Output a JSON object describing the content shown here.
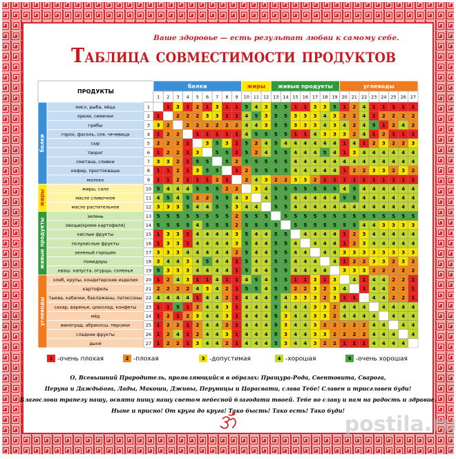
{
  "header": {
    "subtitle": "Ваше здоровье — есть результат любви к самому себе.",
    "title": "Таблица совместимости продуктов"
  },
  "table": {
    "corner": "ПРОДУКТЫ",
    "column_groups": [
      {
        "name": "белки",
        "color": "#3a8fd6",
        "text_color": "#ffffff",
        "columns": [
          1,
          2,
          3,
          4,
          5,
          6,
          7,
          8,
          9
        ]
      },
      {
        "name": "жиры",
        "color": "#ffe800",
        "text_color": "#d6262a",
        "columns": [
          10,
          11,
          12
        ]
      },
      {
        "name": "живые продукты",
        "color": "#2f9a3a",
        "text_color": "#ffffff",
        "columns": [
          13,
          14,
          15,
          16,
          17,
          18,
          19
        ]
      },
      {
        "name": "углеводы",
        "color": "#f07a1c",
        "text_color": "#ffffff",
        "columns": [
          20,
          21,
          22,
          23,
          24,
          25,
          26,
          27
        ]
      }
    ],
    "row_groups": [
      {
        "name": "белки",
        "color": "#3a8fd6",
        "light": "#c5dcf3",
        "text_color": "#ffffff",
        "rows": [
          {
            "number": 1,
            "name": "мясо, рыба, яйца",
            "cells": [
              null,
              1,
              3,
              1,
              2,
              1,
              3,
              1,
              1,
              5,
              4,
              3,
              5,
              5,
              1,
              1,
              3,
              3,
              5,
              1,
              2,
              4,
              1,
              1,
              1,
              1,
              1
            ]
          },
          {
            "number": 2,
            "name": "орехи, семечки",
            "cells": [
              1,
              null,
              2,
              2,
              2,
              3,
              3,
              1,
              1,
              4,
              5,
              3,
              5,
              5,
              3,
              3,
              3,
              4,
              3,
              2,
              2,
              4,
              1,
              2,
              2,
              2,
              2
            ]
          },
          {
            "number": 3,
            "name": "грибы",
            "cells": [
              3,
              2,
              null,
              2,
              2,
              2,
              2,
              2,
              2,
              4,
              4,
              3,
              5,
              5,
              3,
              3,
              3,
              4,
              3,
              4,
              2,
              4,
              5,
              1,
              2,
              4,
              2
            ]
          },
          {
            "number": 4,
            "name": "горох, фасоль, соя, чечевица",
            "cells": [
              1,
              2,
              2,
              null,
              1,
              1,
              1,
              1,
              1,
              4,
              5,
              5,
              5,
              5,
              1,
              1,
              4,
              3,
              3,
              3,
              2,
              4,
              1,
              2,
              1,
              1,
              1
            ]
          },
          {
            "number": 5,
            "name": "сыр",
            "cells": [
              2,
              2,
              2,
              1,
              null,
              3,
              5,
              3,
              1,
              5,
              2,
              4,
              5,
              4,
              4,
              4,
              4,
              4,
              4,
              1,
              4,
              1,
              2,
              3,
              2,
              2,
              3
            ]
          },
          {
            "number": 6,
            "name": "творог",
            "cells": [
              1,
              2,
              2,
              1,
              3,
              null,
              5,
              5,
              1,
              5,
              2,
              4,
              5,
              5,
              4,
              4,
              4,
              5,
              4,
              1,
              3,
              4,
              4,
              4,
              4,
              4,
              4
            ]
          },
          {
            "number": 7,
            "name": "сметана, сливки",
            "cells": [
              3,
              3,
              2,
              1,
              5,
              5,
              null,
              5,
              2,
              5,
              5,
              5,
              5,
              5,
              4,
              4,
              4,
              4,
              4,
              4,
              4,
              4,
              4,
              4,
              4,
              4,
              4
            ]
          },
          {
            "number": 8,
            "name": "кефир, простокваша",
            "cells": [
              1,
              1,
              2,
              1,
              3,
              5,
              5,
              null,
              1,
              2,
              5,
              5,
              5,
              5,
              4,
              4,
              4,
              4,
              4,
              1,
              2,
              2,
              3,
              3,
              2,
              3,
              2
            ]
          },
          {
            "number": 9,
            "name": "молоко",
            "cells": [
              1,
              1,
              2,
              1,
              1,
              1,
              2,
              1,
              null,
              2,
              4,
              3,
              2,
              2,
              3,
              3,
              2,
              1,
              1,
              1,
              1,
              1,
              1,
              1,
              1,
              1,
              1
            ]
          }
        ]
      },
      {
        "name": "жиры",
        "color": "#ffe800",
        "light": "#fff3a8",
        "text_color": "#d6262a",
        "rows": [
          {
            "number": 10,
            "name": "жиры, сало",
            "cells": [
              5,
              4,
              4,
              4,
              5,
              5,
              5,
              2,
              2,
              null,
              3,
              4,
              5,
              5,
              5,
              5,
              5,
              5,
              5,
              4,
              5,
              4,
              4,
              4,
              4,
              4,
              4
            ]
          },
          {
            "number": 11,
            "name": "масло сливочное",
            "cells": [
              4,
              5,
              4,
              5,
              2,
              2,
              5,
              5,
              4,
              3,
              null,
              4,
              5,
              5,
              4,
              4,
              4,
              4,
              4,
              5,
              5,
              4,
              4,
              4,
              4,
              4,
              4
            ]
          },
          {
            "number": 12,
            "name": "масло растительное",
            "cells": [
              3,
              3,
              3,
              5,
              4,
              4,
              5,
              5,
              3,
              4,
              4,
              null,
              5,
              5,
              4,
              4,
              4,
              4,
              4,
              4,
              4,
              4,
              4,
              4,
              4,
              4,
              4
            ]
          }
        ]
      },
      {
        "name": "живые продукты",
        "color": "#2f9a3a",
        "light": "#cfe8b4",
        "text_color": "#ffffff",
        "rows": [
          {
            "number": 13,
            "name": "зелень",
            "cells": [
              5,
              5,
              5,
              5,
              5,
              5,
              5,
              5,
              2,
              5,
              5,
              5,
              null,
              5,
              5,
              5,
              5,
              5,
              5,
              5,
              5,
              5,
              5,
              5,
              5,
              5,
              5
            ]
          },
          {
            "number": 14,
            "name": "овощи(кроме картофеля)",
            "cells": [
              5,
              5,
              5,
              5,
              4,
              5,
              5,
              5,
              2,
              5,
              5,
              5,
              5,
              null,
              5,
              5,
              5,
              5,
              5,
              5,
              5,
              4,
              4,
              3,
              3,
              3,
              3
            ]
          },
          {
            "number": 15,
            "name": "кислые фрукты",
            "cells": [
              1,
              3,
              3,
              1,
              4,
              4,
              4,
              4,
              3,
              5,
              4,
              4,
              5,
              5,
              null,
              4,
              4,
              4,
              4,
              1,
              2,
              3,
              4,
              4,
              4,
              4,
              4
            ]
          },
          {
            "number": 16,
            "name": "полукислые фрукты",
            "cells": [
              1,
              3,
              3,
              1,
              4,
              4,
              4,
              4,
              3,
              5,
              4,
              4,
              5,
              5,
              4,
              null,
              4,
              4,
              4,
              1,
              2,
              3,
              4,
              4,
              4,
              4,
              4
            ]
          },
          {
            "number": 17,
            "name": "зеленый горошек",
            "cells": [
              3,
              3,
              3,
              4,
              4,
              4,
              4,
              4,
              2,
              5,
              4,
              4,
              5,
              5,
              4,
              4,
              null,
              4,
              4,
              3,
              3,
              3,
              3,
              3,
              3,
              3,
              3
            ]
          },
          {
            "number": 18,
            "name": "помидоры",
            "cells": [
              3,
              4,
              4,
              3,
              4,
              5,
              4,
              4,
              1,
              5,
              4,
              4,
              5,
              5,
              4,
              4,
              4,
              null,
              4,
              1,
              2,
              2,
              3,
              3,
              2,
              3,
              2
            ]
          },
          {
            "number": 19,
            "name": "кваш. капуста, огурцы, соленья",
            "cells": [
              5,
              3,
              3,
              3,
              4,
              4,
              4,
              4,
              1,
              5,
              4,
              4,
              5,
              5,
              4,
              4,
              4,
              4,
              null,
              3,
              3,
              3,
              2,
              2,
              2,
              2,
              2
            ]
          }
        ]
      },
      {
        "name": "углеводы",
        "color": "#f07a1c",
        "light": "#fbd3b0",
        "text_color": "#ffffff",
        "rows": [
          {
            "number": 20,
            "name": "хлеб, крупы, кондитерские изделия",
            "cells": [
              1,
              2,
              4,
              3,
              1,
              1,
              4,
              1,
              1,
              4,
              5,
              4,
              5,
              5,
              1,
              1,
              3,
              1,
              3,
              null,
              4,
              1,
              4,
              4,
              2,
              2,
              1
            ]
          },
          {
            "number": 21,
            "name": "картофель",
            "cells": [
              2,
              2,
              2,
              2,
              4,
              3,
              4,
              2,
              1,
              5,
              5,
              4,
              5,
              5,
              2,
              2,
              3,
              2,
              3,
              4,
              null,
              1,
              4,
              4,
              2,
              2,
              1
            ]
          },
          {
            "number": 22,
            "name": "тыква, кабачки, баклажаны, патиссоны",
            "cells": [
              4,
              4,
              4,
              4,
              1,
              4,
              4,
              2,
              1,
              4,
              4,
              4,
              5,
              4,
              3,
              3,
              3,
              2,
              3,
              1,
              1,
              null,
              4,
              4,
              2,
              2,
              1
            ]
          },
          {
            "number": 23,
            "name": "сахар, варенье, шоколад, конфеты",
            "cells": [
              1,
              1,
              5,
              1,
              2,
              4,
              4,
              3,
              1,
              4,
              4,
              4,
              5,
              4,
              4,
              4,
              3,
              3,
              2,
              4,
              4,
              4,
              null,
              4,
              4,
              4,
              4
            ]
          },
          {
            "number": 24,
            "name": "мёд",
            "cells": [
              1,
              2,
              1,
              2,
              3,
              4,
              4,
              3,
              1,
              4,
              4,
              4,
              5,
              3,
              4,
              4,
              3,
              3,
              2,
              4,
              4,
              4,
              4,
              null,
              4,
              4,
              4
            ]
          },
          {
            "number": 25,
            "name": "виноград, абрикосы, персики",
            "cells": [
              1,
              2,
              2,
              1,
              2,
              4,
              4,
              2,
              1,
              4,
              4,
              4,
              5,
              3,
              4,
              4,
              3,
              2,
              2,
              2,
              2,
              2,
              4,
              4,
              null,
              4,
              4
            ]
          },
          {
            "number": 26,
            "name": "сладкие фрукты",
            "cells": [
              1,
              2,
              4,
              1,
              2,
              4,
              4,
              3,
              1,
              4,
              4,
              4,
              5,
              3,
              4,
              4,
              3,
              3,
              2,
              2,
              2,
              2,
              4,
              4,
              4,
              null,
              4
            ]
          },
          {
            "number": 27,
            "name": "дыня",
            "cells": [
              1,
              2,
              2,
              1,
              3,
              4,
              4,
              2,
              1,
              4,
              4,
              4,
              5,
              3,
              4,
              4,
              3,
              2,
              2,
              1,
              1,
              1,
              4,
              4,
              4,
              4,
              null
            ]
          }
        ]
      }
    ]
  },
  "legend": [
    {
      "value": 1,
      "label": "-очень плохая",
      "color": "#e8221e"
    },
    {
      "value": 2,
      "label": "-плохая",
      "color": "#f08a1c"
    },
    {
      "value": 3,
      "label": "-допустимая",
      "color": "#f5e400"
    },
    {
      "value": 4,
      "label": "-хорошая",
      "color": "#c3d82f"
    },
    {
      "value": 5,
      "label": "-очень хорошая",
      "color": "#4da646"
    }
  ],
  "prayer": [
    "О, Всевышний Прародитель, проявляющийся в образах: Пращура-Рода, Свентовита, Сварога,",
    "Перуна и Даждьбога, Лады, Макоши, Дживы, Перуницы и Царасвати, слава Тебе! Славен и трисглавен буди!",
    "Благослови трапезу нашу, освяти пищу нашу светом небесной благодати твоей. Тебе во славу и нам на радость и здравие.",
    "Ныне и присно! От круга до круга! Тако бысть! Тако есть! Тако буди!"
  ],
  "watermark": "postila.ru"
}
